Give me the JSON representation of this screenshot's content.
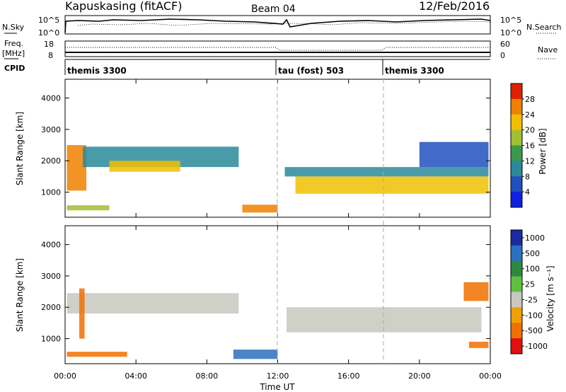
{
  "header": {
    "station": "Kapuskasing (fitACF)",
    "beam": "Beam 04",
    "date": "12/Feb/2016"
  },
  "status_panel": {
    "nsky_label": "N.Sky",
    "nsky_ticks": [
      "10^5",
      "10^0"
    ],
    "nsearch_label": "N.Search",
    "nsearch_ticks": [
      "10^5",
      "10^0"
    ],
    "freq_label": "Freq.",
    "freq_unit": "[MHz]",
    "freq_ticks": [
      "18",
      "8"
    ],
    "nave_label": "Nave",
    "nave_ticks": [
      "60",
      "0"
    ],
    "cpid_label": "CPID",
    "cpid_segments": [
      {
        "label": "themis 3300",
        "start_h": 0,
        "end_h": 12.0
      },
      {
        "label": "tau (fost) 503",
        "start_h": 12.0,
        "end_h": 18.0
      },
      {
        "label": "themis 3300",
        "start_h": 18.0,
        "end_h": 24.0
      }
    ]
  },
  "colors": {
    "power_scale": [
      "#1020e0",
      "#2050c0",
      "#2a8a9a",
      "#3a9a4a",
      "#a0c030",
      "#f0c000",
      "#f08000",
      "#e02000"
    ],
    "velocity_scale": [
      "#1a2aa0",
      "#2a70c0",
      "#2a8a40",
      "#5fc040",
      "#c8c8c0",
      "#f0a000",
      "#f07000",
      "#e01010"
    ]
  },
  "chart_data": [
    {
      "type": "heatmap",
      "panel": "power",
      "xlabel": "Time UT",
      "ylabel": "Slant Range [km]",
      "xlim": [
        0,
        24
      ],
      "ylim": [
        200,
        4600
      ],
      "x_ticks": [
        "00:00",
        "04:00",
        "08:00",
        "12:00",
        "16:00",
        "20:00",
        "00:00"
      ],
      "y_ticks": [
        "1000",
        "2000",
        "3000",
        "4000"
      ],
      "colorbar_label": "Power [dB]",
      "colorbar_ticks": [
        "4",
        "8",
        "12",
        "16",
        "20",
        "24",
        "28"
      ],
      "colorbar_range": [
        0,
        30
      ],
      "echo_bands": [
        {
          "t0": 0.1,
          "t1": 1.2,
          "r0": 1050,
          "r1": 2500,
          "value": 24
        },
        {
          "t0": 1.0,
          "t1": 9.8,
          "r0": 1800,
          "r1": 2450,
          "value": 10
        },
        {
          "t0": 2.5,
          "t1": 6.5,
          "r0": 1650,
          "r1": 2000,
          "value": 20
        },
        {
          "t0": 0.1,
          "t1": 2.5,
          "r0": 420,
          "r1": 580,
          "value": 16
        },
        {
          "t0": 10.0,
          "t1": 12.0,
          "r0": 350,
          "r1": 600,
          "value": 24
        },
        {
          "t0": 12.4,
          "t1": 23.9,
          "r0": 1500,
          "r1": 1800,
          "value": 8
        },
        {
          "t0": 13.0,
          "t1": 23.9,
          "r0": 950,
          "r1": 1500,
          "value": 22
        },
        {
          "t0": 20.0,
          "t1": 23.9,
          "r0": 1800,
          "r1": 2600,
          "value": 6
        }
      ]
    },
    {
      "type": "heatmap",
      "panel": "velocity",
      "xlabel": "Time UT",
      "ylabel": "Slant Range [km]",
      "xlim": [
        0,
        24
      ],
      "ylim": [
        200,
        4600
      ],
      "x_ticks": [
        "00:00",
        "04:00",
        "08:00",
        "12:00",
        "16:00",
        "20:00",
        "00:00"
      ],
      "y_ticks": [
        "1000",
        "2000",
        "3000",
        "4000"
      ],
      "colorbar_label": "Velocity [m s⁻¹]",
      "colorbar_ticks": [
        "1000",
        "500",
        "100",
        "25",
        "-25",
        "-100",
        "-500",
        "-1000"
      ],
      "echo_bands": [
        {
          "t0": 0.1,
          "t1": 9.8,
          "r0": 1800,
          "r1": 2450,
          "value": 0
        },
        {
          "t0": 0.8,
          "t1": 1.1,
          "r0": 1000,
          "r1": 2600,
          "value": -300
        },
        {
          "t0": 0.1,
          "t1": 3.5,
          "r0": 420,
          "r1": 580,
          "value": -300
        },
        {
          "t0": 9.5,
          "t1": 12.0,
          "r0": 350,
          "r1": 650,
          "value": 150
        },
        {
          "t0": 12.5,
          "t1": 23.5,
          "r0": 1200,
          "r1": 2000,
          "value": 0
        },
        {
          "t0": 22.5,
          "t1": 23.9,
          "r0": 2200,
          "r1": 2800,
          "value": -400
        },
        {
          "t0": 22.8,
          "t1": 23.9,
          "r0": 700,
          "r1": 900,
          "value": -200
        }
      ]
    }
  ]
}
